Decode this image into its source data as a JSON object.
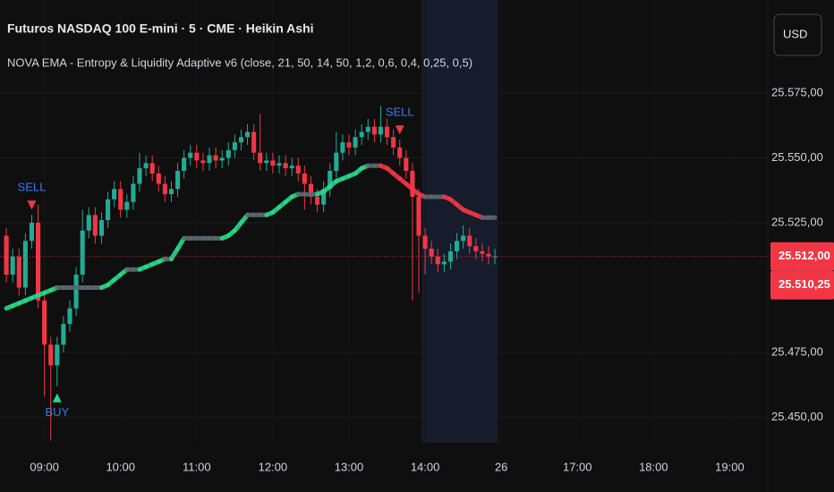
{
  "header": {
    "symbol": "Futuros NASDAQ 100 E-mini · 5 · CME · Heikin Ashi",
    "indicator": "NOVA EMA - Entropy & Liquidity Adaptive v6 (close, 21, 50, 14, 50, 1,2, 0,6, 0,4, 0,25, 0,5)",
    "currency": "USD"
  },
  "chart_data": {
    "type": "candlestick",
    "open": [
      25520,
      25505,
      25512,
      25500,
      25518,
      25525,
      25495,
      25478,
      25470,
      25478,
      25486,
      25492,
      25505,
      25522,
      25528,
      25520,
      25526,
      25534,
      25538,
      25530,
      25533,
      25540,
      25546,
      25548,
      25544,
      25540,
      25536,
      25538,
      25545,
      25550,
      25552,
      25549,
      25548,
      25551,
      25549,
      25550,
      25553,
      25556,
      25558,
      25560,
      25552,
      25548,
      25549,
      25547,
      25548,
      25546,
      25547,
      25544,
      25540,
      25535,
      25532,
      25538,
      25545,
      25552,
      25556,
      25554,
      25558,
      25560,
      25562,
      25559,
      25562,
      25558,
      25554,
      25550,
      25545,
      25535,
      25520,
      25515,
      25512,
      25509,
      25510,
      25514,
      25518,
      25520,
      25516,
      25514,
      25513,
      25512
    ],
    "high": [
      25523,
      25515,
      25515,
      25521,
      25528,
      25532,
      25498,
      25481,
      25481,
      25489,
      25495,
      25508,
      25530,
      25531,
      25531,
      25529,
      25537,
      25541,
      25541,
      25536,
      25543,
      25552,
      25551,
      25551,
      25547,
      25543,
      25541,
      25548,
      25553,
      25555,
      25555,
      25552,
      25554,
      25554,
      25553,
      25556,
      25559,
      25561,
      25563,
      25563,
      25567,
      25552,
      25552,
      25551,
      25551,
      25550,
      25550,
      25547,
      25543,
      25538,
      25541,
      25548,
      25560,
      25559,
      25559,
      25561,
      25563,
      25565,
      25565,
      25570,
      25565,
      25561,
      25557,
      25553,
      25548,
      25538,
      25523,
      25518,
      25515,
      25513,
      25517,
      25521,
      25524,
      25523,
      25519,
      25517,
      25516,
      25515
    ],
    "low": [
      25502,
      25502,
      25497,
      25497,
      25515,
      25492,
      25458,
      25441,
      25462,
      25475,
      25483,
      25489,
      25502,
      25519,
      25517,
      25517,
      25523,
      25531,
      25527,
      25527,
      25530,
      25537,
      25543,
      25541,
      25537,
      25533,
      25533,
      25535,
      25542,
      25547,
      25546,
      25545,
      25545,
      25546,
      25546,
      25547,
      25550,
      25553,
      25555,
      25549,
      25545,
      25545,
      25544,
      25544,
      25543,
      25543,
      25541,
      25530,
      25532,
      25529,
      25529,
      25535,
      25542,
      25549,
      25551,
      25551,
      25555,
      25557,
      25556,
      25556,
      25555,
      25551,
      25547,
      25542,
      25495,
      25498,
      25505,
      25509,
      25506,
      25506,
      25507,
      25511,
      25515,
      25513,
      25511,
      25510,
      25509,
      25509
    ],
    "close": [
      25505,
      25512,
      25500,
      25518,
      25525,
      25495,
      25478,
      25470,
      25478,
      25486,
      25492,
      25505,
      25522,
      25528,
      25520,
      25526,
      25534,
      25538,
      25530,
      25533,
      25540,
      25546,
      25548,
      25544,
      25540,
      25536,
      25538,
      25545,
      25550,
      25552,
      25549,
      25548,
      25551,
      25549,
      25550,
      25553,
      25556,
      25558,
      25560,
      25552,
      25548,
      25549,
      25547,
      25548,
      25546,
      25547,
      25544,
      25540,
      25535,
      25532,
      25538,
      25545,
      25552,
      25556,
      25554,
      25558,
      25560,
      25562,
      25559,
      25562,
      25558,
      25554,
      25550,
      25545,
      25535,
      25520,
      25515,
      25512,
      25509,
      25510,
      25514,
      25518,
      25520,
      25516,
      25514,
      25513,
      25512,
      25512
    ],
    "up_color": "#22ab94",
    "down_color": "#f23645",
    "ema": {
      "values": [
        25492,
        25493,
        25494,
        25495,
        25496,
        25497,
        25498,
        25499,
        25500,
        25500,
        25500,
        25500,
        25500,
        25500,
        25500,
        25500,
        25501,
        25503,
        25505,
        25507,
        25507,
        25507,
        25508,
        25509,
        25510,
        25511,
        25511,
        25515,
        25519,
        25519,
        25519,
        25519,
        25519,
        25519,
        25519,
        25520,
        25522,
        25525,
        25528,
        25528,
        25528,
        25528,
        25529,
        25531,
        25533,
        25535,
        25536,
        25536,
        25536,
        25536,
        25537,
        25539,
        25541,
        25542,
        25543,
        25544,
        25546,
        25547,
        25547,
        25547,
        25546,
        25544,
        25542,
        25540,
        25538,
        25536,
        25535,
        25535,
        25535,
        25535,
        25534,
        25532,
        25530,
        25529,
        25528,
        25527,
        25527,
        25527
      ],
      "up_color": "#26d98a",
      "flat_color": "#5b6870",
      "down_color": "#f23645"
    },
    "signals": [
      {
        "label": "SELL",
        "x": 4,
        "placement": "above",
        "color": "#f23645"
      },
      {
        "label": "BUY",
        "x": 8,
        "placement": "below",
        "color": "#26d98a"
      },
      {
        "label": "SELL",
        "x": 62,
        "placement": "above",
        "color": "#f23645"
      }
    ],
    "shade_x": [
      65.5,
      77.5
    ],
    "xlim": [
      -1,
      120
    ],
    "xticks": [
      {
        "value": 6,
        "label": "09:00"
      },
      {
        "value": 18,
        "label": "10:00"
      },
      {
        "value": 30,
        "label": "11:00"
      },
      {
        "value": 42,
        "label": "12:00"
      },
      {
        "value": 54,
        "label": "13:00"
      },
      {
        "value": 66,
        "label": "14:00"
      },
      {
        "value": 78,
        "label": "26"
      },
      {
        "value": 90,
        "label": "17:00"
      },
      {
        "value": 102,
        "label": "18:00"
      },
      {
        "value": 114,
        "label": "19:00"
      }
    ],
    "ylim": [
      25435,
      25610
    ],
    "yticks": [
      {
        "value": 25450,
        "label": "25.450,00"
      },
      {
        "value": 25475,
        "label": "25.475,00"
      },
      {
        "value": 25525,
        "label": "25.525,00"
      },
      {
        "value": 25550,
        "label": "25.550,00"
      },
      {
        "value": 25575,
        "label": "25.575,00"
      }
    ],
    "price_labels": [
      {
        "value": 25512,
        "label": "25.512,00"
      },
      {
        "value": 25510.25,
        "label": "25.510,25"
      }
    ],
    "grid": true
  }
}
